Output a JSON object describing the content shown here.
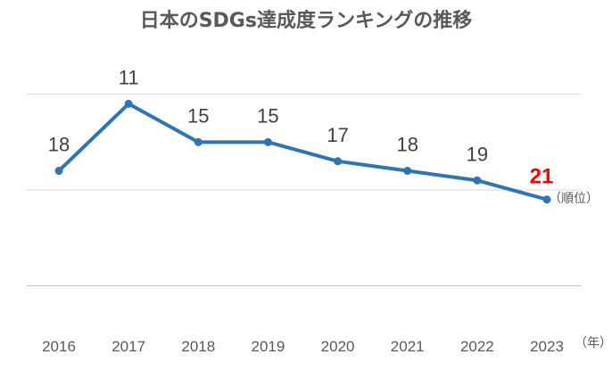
{
  "chart_data": {
    "type": "line",
    "title": "日本のSDGs達成度ランキングの推移",
    "categories": [
      "2016",
      "2017",
      "2018",
      "2019",
      "2020",
      "2021",
      "2022",
      "2023"
    ],
    "series": [
      {
        "values": [
          18,
          11,
          15,
          15,
          17,
          18,
          19,
          21
        ]
      }
    ],
    "ylabel": "（順位）",
    "xlabel": "（年）",
    "y_inverted": true,
    "ylim": [
      5,
      35
    ],
    "grid": true,
    "colors": {
      "line": "#2e75b6",
      "highlight_label": "#ff0000",
      "grid": "#d9d9d9",
      "axis": "#bfbfbf"
    }
  }
}
